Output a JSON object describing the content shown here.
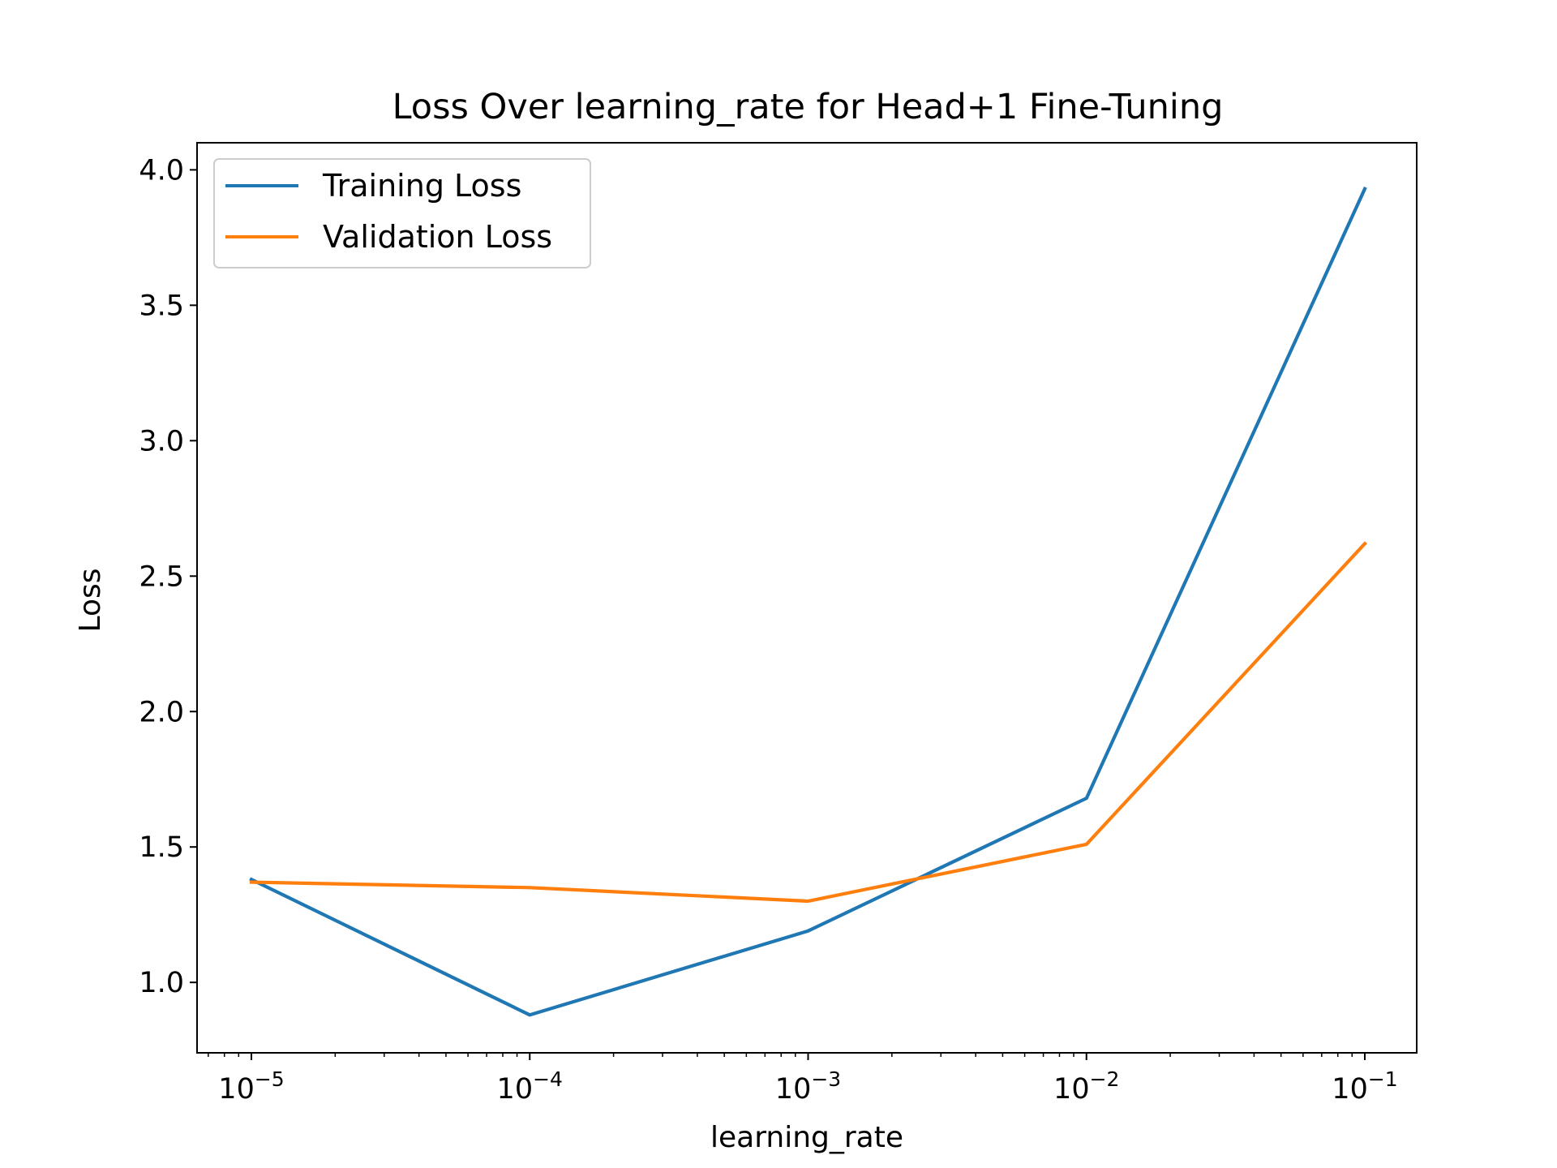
{
  "chart_data": {
    "type": "line",
    "title": "Loss Over learning_rate for Head+1 Fine-Tuning",
    "xlabel": "learning_rate",
    "ylabel": "Loss",
    "xscale": "log",
    "x": [
      1e-05,
      0.0001,
      0.001,
      0.01,
      0.1
    ],
    "x_tick_labels": [
      {
        "base": "10",
        "exp": "−5"
      },
      {
        "base": "10",
        "exp": "−4"
      },
      {
        "base": "10",
        "exp": "−3"
      },
      {
        "base": "10",
        "exp": "−2"
      },
      {
        "base": "10",
        "exp": "−1"
      }
    ],
    "y_ticks": [
      "1.0",
      "1.5",
      "2.0",
      "2.5",
      "3.0",
      "3.5",
      "4.0"
    ],
    "ylim": [
      0.74,
      4.1
    ],
    "grid": false,
    "legend_position": "upper-left",
    "series": [
      {
        "name": "Training Loss",
        "color": "#1f77b4",
        "values": [
          1.38,
          0.88,
          1.19,
          1.68,
          3.93
        ]
      },
      {
        "name": "Validation Loss",
        "color": "#ff7f0e",
        "values": [
          1.37,
          1.35,
          1.3,
          1.51,
          2.62
        ]
      }
    ]
  }
}
